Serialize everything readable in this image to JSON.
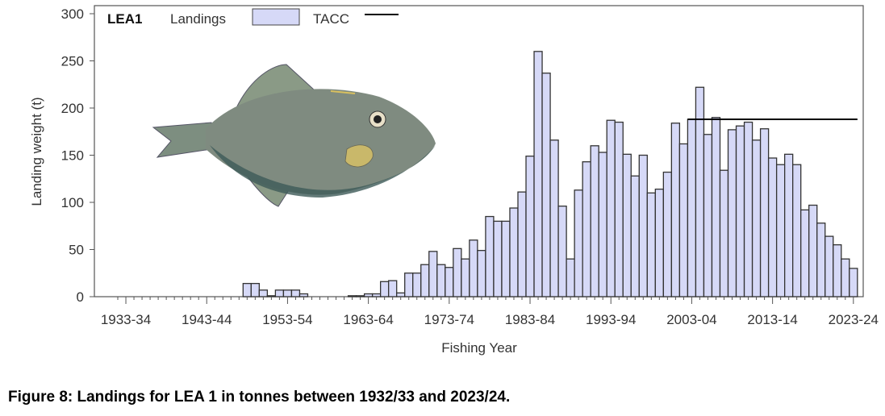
{
  "chart_data": {
    "type": "bar",
    "title": "LEA1",
    "xlabel": "Fishing Year",
    "ylabel": "Landing weight (t)",
    "ylim": [
      0,
      300
    ],
    "yticks": [
      "0",
      "50",
      "100",
      "150",
      "200",
      "250",
      "300"
    ],
    "xtick_labels": [
      "1933-34",
      "1943-44",
      "1953-54",
      "1963-64",
      "1973-74",
      "1983-84",
      "1993-94",
      "2003-04",
      "2013-14",
      "2023-24"
    ],
    "legend": {
      "landings": "Landings",
      "tacc": "TACC",
      "placement": "top"
    },
    "categories": [
      "1932-33",
      "1933-34",
      "1934-35",
      "1935-36",
      "1936-37",
      "1937-38",
      "1938-39",
      "1939-40",
      "1940-41",
      "1941-42",
      "1942-43",
      "1943-44",
      "1944-45",
      "1945-46",
      "1946-47",
      "1947-48",
      "1948-49",
      "1949-50",
      "1950-51",
      "1951-52",
      "1952-53",
      "1953-54",
      "1954-55",
      "1955-56",
      "1956-57",
      "1957-58",
      "1958-59",
      "1959-60",
      "1960-61",
      "1961-62",
      "1962-63",
      "1963-64",
      "1964-65",
      "1965-66",
      "1966-67",
      "1967-68",
      "1968-69",
      "1969-70",
      "1970-71",
      "1971-72",
      "1972-73",
      "1973-74",
      "1974-75",
      "1975-76",
      "1976-77",
      "1977-78",
      "1978-79",
      "1979-80",
      "1980-81",
      "1981-82",
      "1982-83",
      "1983-84",
      "1984-85",
      "1985-86",
      "1986-87",
      "1987-88",
      "1988-89",
      "1989-90",
      "1990-91",
      "1991-92",
      "1992-93",
      "1993-94",
      "1994-95",
      "1995-96",
      "1996-97",
      "1997-98",
      "1998-99",
      "1999-00",
      "2000-01",
      "2001-02",
      "2002-03",
      "2003-04",
      "2004-05",
      "2005-06",
      "2006-07",
      "2007-08",
      "2008-09",
      "2009-10",
      "2010-11",
      "2011-12",
      "2012-13",
      "2013-14",
      "2014-15",
      "2015-16",
      "2016-17",
      "2017-18",
      "2018-19",
      "2019-20",
      "2020-21",
      "2021-22",
      "2022-23",
      "2023-24"
    ],
    "series": [
      {
        "name": "Landings",
        "type": "bar",
        "color": "#d6d9f7",
        "values": [
          0,
          0,
          0,
          0,
          0,
          0,
          0,
          0,
          0,
          0,
          0,
          0,
          0,
          0,
          0,
          0,
          14,
          14,
          7,
          1,
          7,
          7,
          7,
          3,
          0,
          0,
          0,
          0,
          0,
          1,
          1,
          3,
          3,
          16,
          17,
          4,
          25,
          25,
          34,
          48,
          34,
          31,
          51,
          40,
          60,
          49,
          85,
          80,
          80,
          94,
          111,
          149,
          260,
          237,
          166,
          96,
          40,
          113,
          143,
          160,
          153,
          187,
          185,
          151,
          128,
          150,
          110,
          114,
          132,
          184,
          162,
          188,
          222,
          172,
          190,
          134,
          177,
          181,
          185,
          166,
          178,
          147,
          140,
          151,
          140,
          92,
          97,
          78,
          64,
          55,
          40,
          30
        ]
      },
      {
        "name": "TACC",
        "type": "line",
        "color": "#000000",
        "start": "2003-04",
        "end": "2023-24",
        "value": 188
      }
    ]
  },
  "caption": "Figure 8: Landings for LEA 1 in tonnes between 1932/33 and 2023/24."
}
